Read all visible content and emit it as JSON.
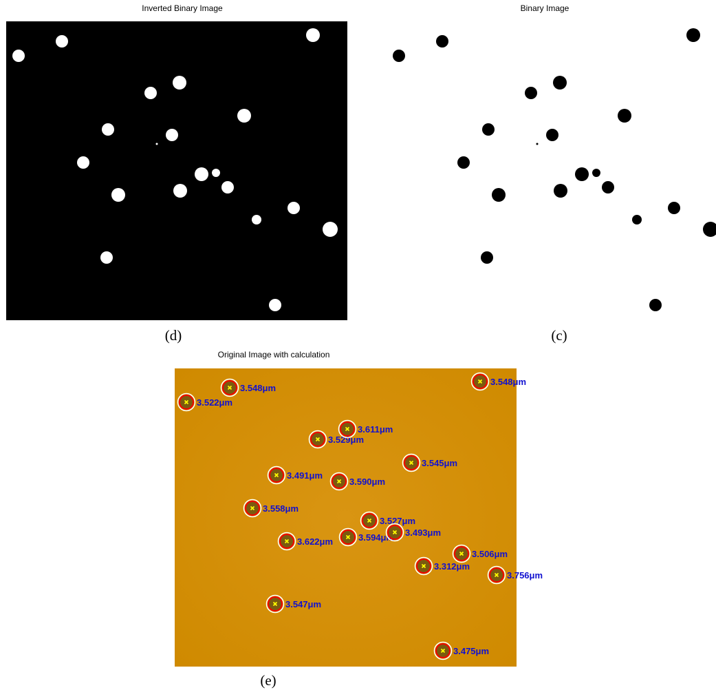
{
  "panels": [
    {
      "title": "Inverted Binary Image",
      "caption": "(d)"
    },
    {
      "title": "Binary Image",
      "caption": "(c)"
    },
    {
      "title": "Original Image with calculation",
      "caption": "(e)",
      "labels": [
        "3.522μm",
        "3.548μm",
        "3.548μm",
        "3.529μm",
        "3.611μm",
        "3.545μm",
        "3.491μm",
        "3.590μm",
        "3.558μm",
        "3.527μm",
        "3.622μm",
        "3.594μm",
        "3.493μm",
        "3.506μm",
        "3.312μm",
        "3.756μm",
        "3.547μm",
        "3.475μm"
      ]
    }
  ]
}
